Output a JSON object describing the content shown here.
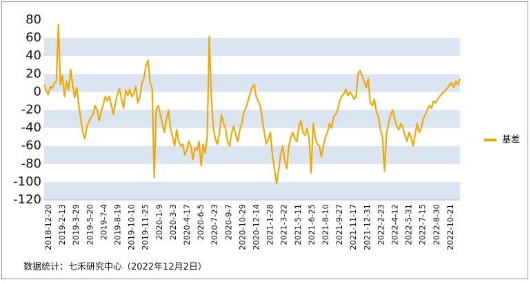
{
  "chart_data": {
    "type": "line",
    "title": "",
    "xlabel": "",
    "ylabel": "",
    "ylim": [
      -120,
      80
    ],
    "yticks": [
      "80",
      "60",
      "40",
      "20",
      "0",
      "-20",
      "-40",
      "-60",
      "-80",
      "-100",
      "-120"
    ],
    "x_tick_labels": [
      "2018-12-20",
      "2019-2-13",
      "2019-3-29",
      "2019-5-20",
      "2019-7-4",
      "2019-8-19",
      "2019-10-10",
      "2019-11-25",
      "2020-1-9",
      "2020-3-3",
      "2020-4-17",
      "2020-6-5",
      "2020-7-23",
      "2020-9-7",
      "2020-10-29",
      "2020-12-14",
      "2021-1-28",
      "2021-3-22",
      "2021-5-11",
      "2021-6-25",
      "2021-8-10",
      "2021-9-27",
      "2021-11-17",
      "2021-12-31",
      "2022-2-23",
      "2022-4-12",
      "2022-5-31",
      "2022-7-15",
      "2022-8-30",
      "2022-10-21"
    ],
    "grid": "horizontal alternating bands",
    "legend_position": "right",
    "series": [
      {
        "name": "基差",
        "color": "#f0a800",
        "values": [
          8,
          2,
          -3,
          6,
          4,
          10,
          12,
          75,
          8,
          18,
          -5,
          12,
          2,
          25,
          8,
          -6,
          5,
          -15,
          -30,
          -45,
          -52,
          -38,
          -33,
          -28,
          -25,
          -15,
          -20,
          -32,
          -22,
          -14,
          -5,
          -10,
          -5,
          -15,
          -25,
          -12,
          -2,
          4,
          -8,
          -18,
          2,
          -4,
          3,
          -5,
          -2,
          6,
          -12,
          -5,
          10,
          16,
          30,
          35,
          10,
          4,
          -95,
          -20,
          -15,
          -25,
          -35,
          -45,
          -30,
          -20,
          -40,
          -50,
          -60,
          -42,
          -55,
          -60,
          -58,
          -70,
          -65,
          -55,
          -60,
          -75,
          -62,
          -65,
          -55,
          -82,
          -58,
          -68,
          -50,
          62,
          -5,
          -40,
          -52,
          -58,
          -45,
          -25,
          -35,
          -40,
          -55,
          -60,
          -45,
          -38,
          -48,
          -55,
          -42,
          -35,
          -22,
          -18,
          -10,
          -2,
          5,
          8,
          -5,
          -10,
          -15,
          -30,
          -45,
          -58,
          -52,
          -45,
          -70,
          -85,
          -102,
          -88,
          -70,
          -60,
          -75,
          -85,
          -62,
          -50,
          -45,
          -52,
          -55,
          -38,
          -32,
          -45,
          -48,
          -40,
          -52,
          -90,
          -35,
          -50,
          -58,
          -60,
          -72,
          -60,
          -50,
          -45,
          -35,
          -40,
          -28,
          -25,
          -20,
          -10,
          -5,
          -2,
          3,
          -4,
          0,
          -3,
          -8,
          -5,
          20,
          24,
          18,
          12,
          5,
          15,
          -12,
          -15,
          -8,
          -22,
          -28,
          -42,
          -50,
          -88,
          -45,
          -35,
          -25,
          -20,
          -30,
          -38,
          -42,
          -35,
          -40,
          -48,
          -55,
          -45,
          -50,
          -60,
          -48,
          -35,
          -45,
          -40,
          -30,
          -25,
          -20,
          -15,
          -18,
          -10,
          -12,
          -8,
          -5,
          -2,
          0,
          2,
          5,
          8,
          10,
          5,
          12,
          8,
          15
        ]
      }
    ]
  },
  "legend": {
    "label": "基差"
  },
  "source": "数据统计：七禾研究中心（2022年12月2日）"
}
